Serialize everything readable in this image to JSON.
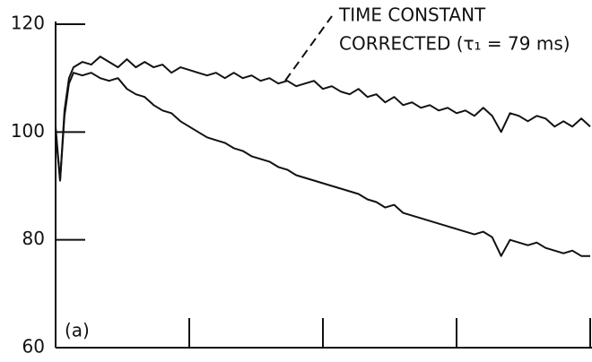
{
  "chart_data": {
    "type": "line",
    "annotations": [
      "TIME CONSTANT",
      "CORRECTED (τ₁ = 79 ms)"
    ],
    "panel_label": "(a)",
    "x": [
      0,
      0.5,
      1,
      1.5,
      2,
      3,
      4,
      5,
      6,
      7,
      8,
      9,
      10,
      11,
      12,
      13,
      14,
      15,
      16,
      17,
      18,
      19,
      20,
      21,
      22,
      23,
      24,
      25,
      26,
      27,
      28,
      29,
      30,
      31,
      32,
      33,
      34,
      35,
      36,
      37,
      38,
      39,
      40,
      41,
      42,
      43,
      44,
      45,
      46,
      47,
      48,
      49,
      50,
      51,
      52,
      53,
      54,
      55,
      56,
      57,
      58,
      59,
      60
    ],
    "series": [
      {
        "color": "#111111",
        "values": [
          101,
          91,
          104,
          110,
          112,
          113,
          112.5,
          114,
          113,
          112,
          113.5,
          112,
          113,
          112,
          112.5,
          111,
          112,
          111.5,
          111,
          110.5,
          111,
          110,
          111,
          110,
          110.5,
          109.5,
          110,
          109,
          109.5,
          108.5,
          109,
          109.5,
          108,
          108.5,
          107.5,
          107,
          108,
          106.5,
          107,
          105.5,
          106.5,
          105,
          105.5,
          104.5,
          105,
          104,
          104.5,
          103.5,
          104,
          103,
          104.5,
          103,
          100,
          103.5,
          103,
          102,
          103,
          102.5,
          101,
          102,
          101,
          102.5,
          101
        ]
      },
      {
        "color": "#111111",
        "values": [
          100,
          91,
          103,
          109,
          111,
          110.5,
          111,
          110,
          109.5,
          110,
          108,
          107,
          106.5,
          105,
          104,
          103.5,
          102,
          101,
          100,
          99,
          98.5,
          98,
          97,
          96.5,
          95.5,
          95,
          94.5,
          93.5,
          93,
          92,
          91.5,
          91,
          90.5,
          90,
          89.5,
          89,
          88.5,
          87.5,
          87,
          86,
          86.5,
          85,
          84.5,
          84,
          83.5,
          83,
          82.5,
          82,
          81.5,
          81,
          81.5,
          80.5,
          77,
          80,
          79.5,
          79,
          79.5,
          78.5,
          78,
          77.5,
          78,
          77,
          77
        ]
      }
    ],
    "xlim": [
      0,
      60
    ],
    "xticks": [
      15,
      30,
      45,
      60
    ],
    "ylim": [
      60,
      120
    ],
    "yticks": [
      60,
      80,
      100,
      120
    ]
  }
}
